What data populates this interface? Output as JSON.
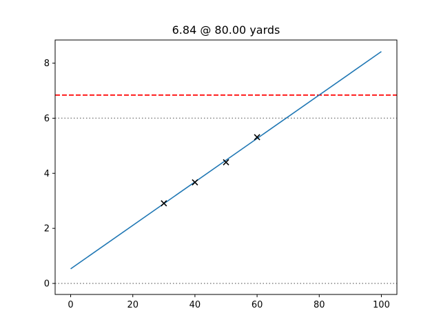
{
  "chart_data": {
    "type": "line",
    "title": "6.84 @ 80.00 yards",
    "xlabel": "",
    "ylabel": "",
    "xlim": [
      -5,
      105
    ],
    "ylim": [
      -0.4,
      8.84
    ],
    "x_ticks": [
      0,
      20,
      40,
      60,
      80,
      100
    ],
    "y_ticks": [
      0,
      2,
      4,
      6,
      8
    ],
    "grid": false,
    "fit_line": {
      "x": [
        0,
        100
      ],
      "y": [
        0.53,
        8.42
      ],
      "color": "#1f77b4"
    },
    "markers": {
      "symbol": "x",
      "color": "#000000",
      "x": [
        30,
        40,
        50,
        60
      ],
      "y": [
        2.91,
        3.67,
        4.4,
        5.31
      ]
    },
    "reference_lines": [
      {
        "y": 6.84,
        "style": "dashed",
        "color": "#ff0000"
      },
      {
        "y": 6,
        "style": "dotted",
        "color": "#808080"
      },
      {
        "y": 0,
        "style": "dotted",
        "color": "#808080"
      }
    ]
  }
}
